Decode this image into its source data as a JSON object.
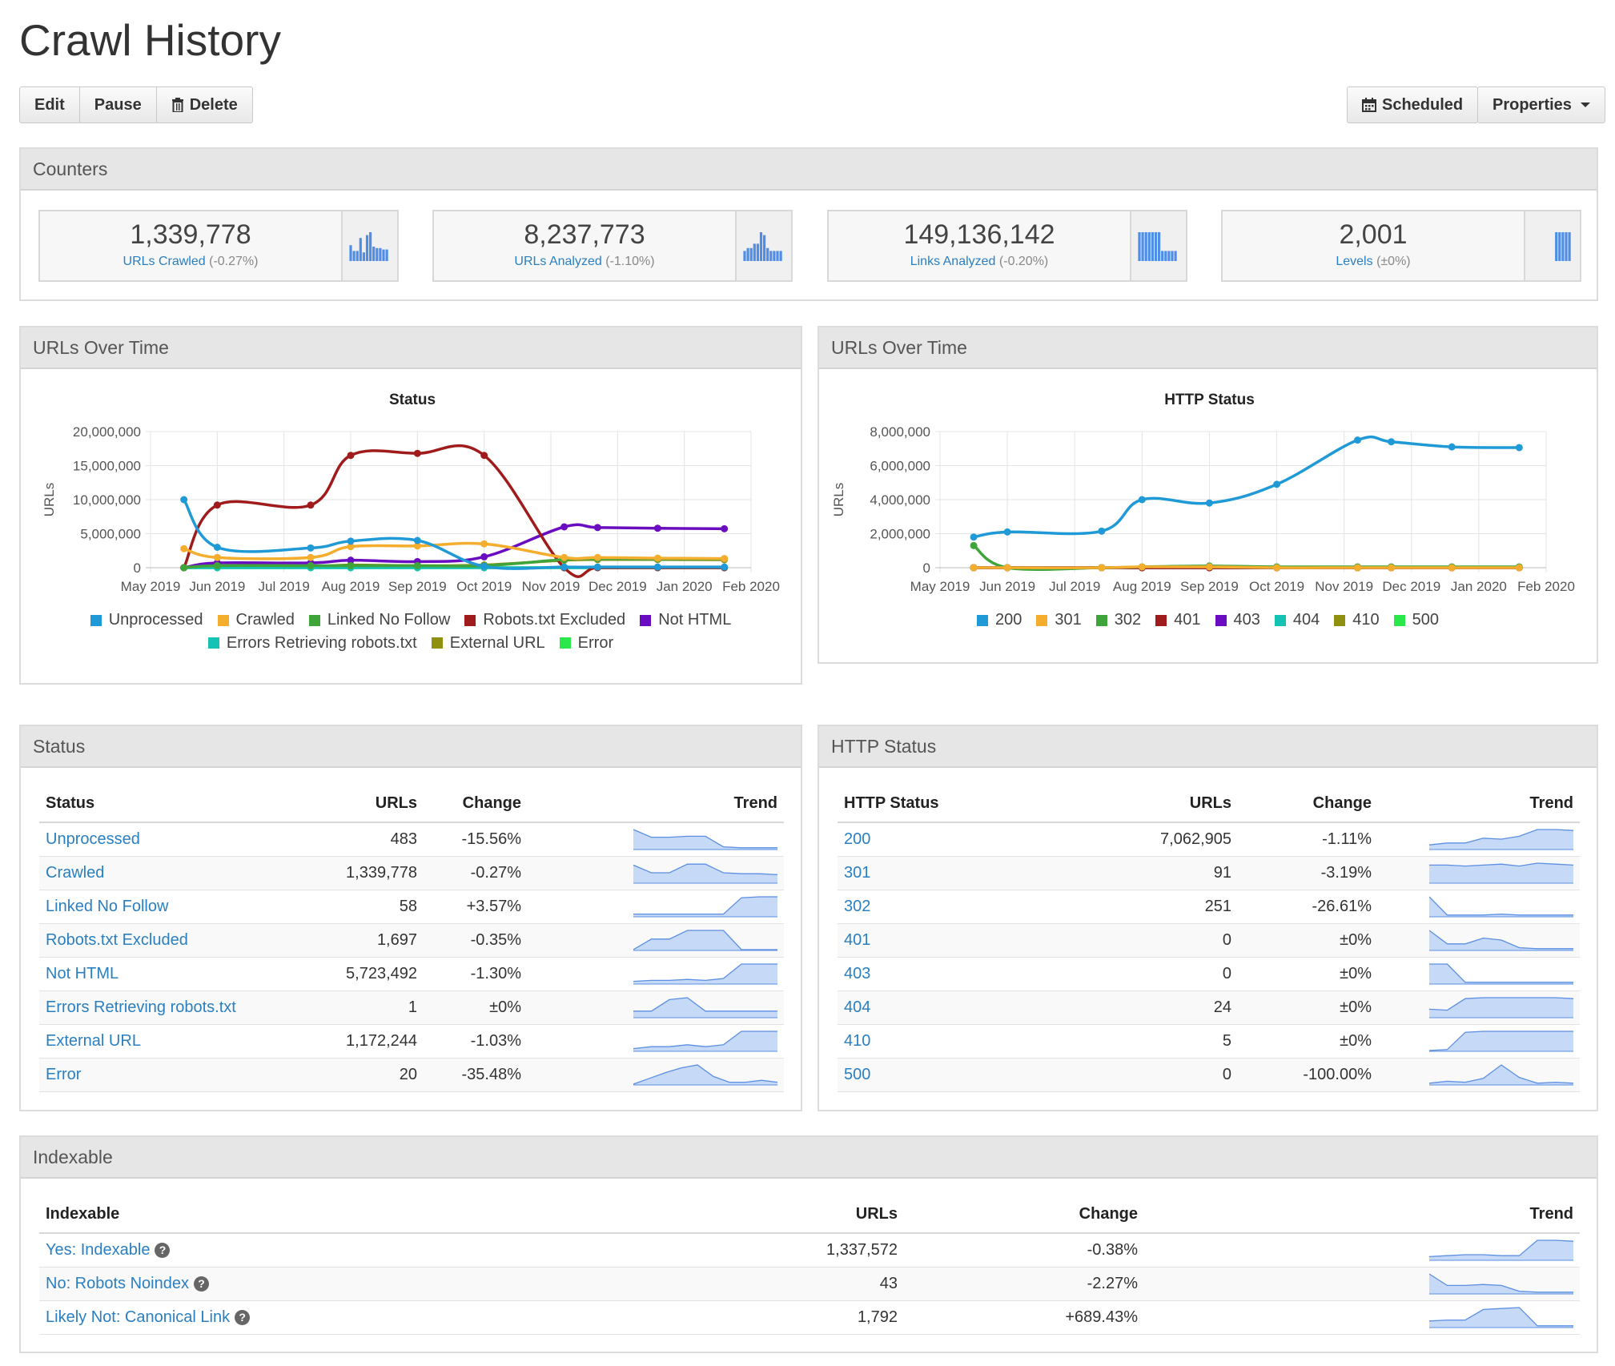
{
  "page": {
    "title": "Crawl History"
  },
  "toolbar": {
    "edit": "Edit",
    "pause": "Pause",
    "delete": "Delete",
    "delete_icon": "trash-icon",
    "scheduled": "Scheduled",
    "scheduled_icon": "calendar-icon",
    "properties": "Properties"
  },
  "counters": {
    "title": "Counters",
    "items": [
      {
        "value": "1,339,778",
        "label": "URLs Crawled",
        "change": "(-0.27%)",
        "bars": [
          0.55,
          0.35,
          0.35,
          0.8,
          0.3,
          0.9,
          1,
          0.5,
          0.45,
          0.45,
          0.4,
          0.4
        ]
      },
      {
        "value": "8,237,773",
        "label": "URLs Analyzed",
        "change": "(-1.10%)",
        "bars": [
          0.35,
          0.45,
          0.45,
          0.6,
          0.6,
          1,
          0.9,
          0.45,
          0.35,
          0.35,
          0.35,
          0.35
        ]
      },
      {
        "value": "149,136,142",
        "label": "Links Analyzed",
        "change": "(-0.20%)",
        "bars": [
          1,
          1,
          1,
          1,
          1,
          1,
          1,
          0.35,
          0.35,
          0.35,
          0.35,
          0.35
        ]
      },
      {
        "value": "2,001",
        "label": "Levels",
        "change": "(±0%)",
        "bars": [
          0,
          0,
          0,
          0,
          0,
          0,
          0,
          1,
          1,
          1,
          1,
          1
        ]
      }
    ]
  },
  "chart_status": {
    "panel_title": "URLs Over Time",
    "accent": "#2a7fc0"
  },
  "chart_http": {
    "panel_title": "URLs Over Time"
  },
  "chart_data": [
    {
      "type": "line",
      "title": "Status",
      "ylabel": "URLs",
      "ylim": [
        0,
        20000000
      ],
      "yticks": [
        "0",
        "5,000,000",
        "10,000,000",
        "15,000,000",
        "20,000,000"
      ],
      "xticks": [
        "May 2019",
        "Jun 2019",
        "Jul 2019",
        "Aug 2019",
        "Sep 2019",
        "Oct 2019",
        "Nov 2019",
        "Dec 2019",
        "Jan 2020",
        "Feb 2020"
      ],
      "legend_position": "bottom",
      "x": [
        0.5,
        1.0,
        2.4,
        3.0,
        4.0,
        5.0,
        6.2,
        6.7,
        7.6,
        8.6
      ],
      "series": [
        {
          "name": "Unprocessed",
          "color": "#1f9ad6",
          "values": [
            10000000,
            3000000,
            2900000,
            3900000,
            4000000,
            200000,
            100000,
            100000,
            100000,
            100000
          ]
        },
        {
          "name": "Crawled",
          "color": "#f5ad2e",
          "values": [
            2800000,
            1500000,
            1500000,
            3100000,
            3200000,
            3500000,
            1500000,
            1500000,
            1400000,
            1340000
          ]
        },
        {
          "name": "Linked No Follow",
          "color": "#3fa53a",
          "values": [
            0,
            300000,
            300000,
            300000,
            300000,
            300000,
            1200000,
            1300000,
            1300000,
            1300000
          ]
        },
        {
          "name": "Robots.txt Excluded",
          "color": "#a01c1c",
          "values": [
            0,
            9200000,
            9200000,
            16500000,
            16800000,
            16500000,
            0,
            0,
            0,
            0
          ]
        },
        {
          "name": "Not HTML",
          "color": "#6a0dc0",
          "values": [
            0,
            700000,
            700000,
            1100000,
            900000,
            1600000,
            6000000,
            5900000,
            5800000,
            5720000
          ]
        },
        {
          "name": "Errors Retrieving robots.txt",
          "color": "#16c2b4",
          "values": [
            0,
            0,
            0,
            0,
            0,
            0,
            0,
            0,
            0,
            0
          ]
        },
        {
          "name": "External URL",
          "color": "#8f8f10",
          "values": [
            0,
            200000,
            200000,
            400000,
            300000,
            400000,
            1100000,
            1200000,
            1200000,
            1170000
          ]
        },
        {
          "name": "Error",
          "color": "#2ae84a",
          "values": [
            0,
            0,
            0,
            0,
            0,
            0,
            0,
            0,
            0,
            0
          ]
        }
      ]
    },
    {
      "type": "line",
      "title": "HTTP Status",
      "ylabel": "URLs",
      "ylim": [
        0,
        8000000
      ],
      "yticks": [
        "0",
        "2,000,000",
        "4,000,000",
        "6,000,000",
        "8,000,000"
      ],
      "xticks": [
        "May 2019",
        "Jun 2019",
        "Jul 2019",
        "Aug 2019",
        "Sep 2019",
        "Oct 2019",
        "Nov 2019",
        "Dec 2019",
        "Jan 2020",
        "Feb 2020"
      ],
      "legend_position": "bottom",
      "x": [
        0.5,
        1.0,
        2.4,
        3.0,
        4.0,
        5.0,
        6.2,
        6.7,
        7.6,
        8.6
      ],
      "series": [
        {
          "name": "200",
          "color": "#1f9ad6",
          "values": [
            1800000,
            2100000,
            2150000,
            4000000,
            3800000,
            4900000,
            7500000,
            7400000,
            7100000,
            7060000
          ]
        },
        {
          "name": "301",
          "color": "#f5ad2e",
          "values": [
            0,
            0,
            0,
            50000,
            50000,
            0,
            0,
            0,
            0,
            0
          ]
        },
        {
          "name": "302",
          "color": "#3fa53a",
          "values": [
            1300000,
            0,
            0,
            50000,
            100000,
            50000,
            50000,
            50000,
            50000,
            50000
          ]
        },
        {
          "name": "401",
          "color": "#a01c1c",
          "values": [
            0,
            0,
            0,
            0,
            0,
            0,
            0,
            0,
            0,
            0
          ]
        },
        {
          "name": "403",
          "color": "#6a0dc0",
          "values": [
            0,
            0,
            0,
            0,
            0,
            0,
            0,
            0,
            0,
            0
          ]
        },
        {
          "name": "404",
          "color": "#16c2b4",
          "values": [
            0,
            0,
            0,
            0,
            0,
            0,
            0,
            0,
            0,
            0
          ]
        },
        {
          "name": "410",
          "color": "#8f8f10",
          "values": [
            0,
            0,
            0,
            0,
            0,
            0,
            0,
            0,
            0,
            0
          ]
        },
        {
          "name": "500",
          "color": "#2ae84a",
          "values": [
            0,
            0,
            0,
            0,
            0,
            0,
            0,
            0,
            0,
            0
          ]
        }
      ]
    }
  ],
  "status_table": {
    "panel_title": "Status",
    "headers": [
      "Status",
      "URLs",
      "Change",
      "Trend"
    ],
    "rows": [
      {
        "name": "Unprocessed",
        "urls": "483",
        "change": "-15.56%",
        "trend": [
          1,
          0.6,
          0.6,
          0.65,
          0.65,
          0.1,
          0.05,
          0.05,
          0.05
        ]
      },
      {
        "name": "Crawled",
        "urls": "1,339,778",
        "change": "-0.27%",
        "trend": [
          0.9,
          0.5,
          0.5,
          0.95,
          0.95,
          0.5,
          0.45,
          0.45,
          0.4
        ]
      },
      {
        "name": "Linked No Follow",
        "urls": "58",
        "change": "+3.57%",
        "trend": [
          0.1,
          0.1,
          0.1,
          0.1,
          0.1,
          0.1,
          0.95,
          1,
          1
        ]
      },
      {
        "name": "Robots.txt Excluded",
        "urls": "1,697",
        "change": "-0.35%",
        "trend": [
          0,
          0.55,
          0.55,
          1,
          1,
          1,
          0,
          0,
          0
        ]
      },
      {
        "name": "Not HTML",
        "urls": "5,723,492",
        "change": "-1.30%",
        "trend": [
          0.1,
          0.15,
          0.15,
          0.2,
          0.15,
          0.25,
          1,
          1,
          1
        ]
      },
      {
        "name": "Errors Retrieving robots.txt",
        "urls": "1",
        "change": "±0%",
        "trend": [
          0.3,
          0.3,
          0.9,
          1,
          0.3,
          0.3,
          0.3,
          0.3,
          0.3
        ]
      },
      {
        "name": "External URL",
        "urls": "1,172,244",
        "change": "-1.03%",
        "trend": [
          0.1,
          0.2,
          0.2,
          0.3,
          0.2,
          0.3,
          1,
          1,
          1
        ]
      },
      {
        "name": "Error",
        "urls": "20",
        "change": "-35.48%",
        "trend": [
          0,
          0.3,
          0.6,
          0.85,
          1,
          0.4,
          0.1,
          0.1,
          0.2,
          0.1
        ]
      }
    ]
  },
  "http_table": {
    "panel_title": "HTTP Status",
    "headers": [
      "HTTP Status",
      "URLs",
      "Change",
      "Trend"
    ],
    "rows": [
      {
        "name": "200",
        "urls": "7,062,905",
        "change": "-1.11%",
        "trend": [
          0.2,
          0.3,
          0.3,
          0.55,
          0.5,
          0.65,
          1,
          1,
          0.95
        ]
      },
      {
        "name": "301",
        "urls": "91",
        "change": "-3.19%",
        "trend": [
          0.9,
          0.9,
          0.85,
          0.9,
          0.95,
          0.85,
          1,
          0.95,
          0.9
        ]
      },
      {
        "name": "302",
        "urls": "251",
        "change": "-26.61%",
        "trend": [
          1,
          0.05,
          0.05,
          0.05,
          0.1,
          0.05,
          0.05,
          0.05,
          0.05
        ]
      },
      {
        "name": "401",
        "urls": "0",
        "change": "±0%",
        "trend": [
          1,
          0.3,
          0.3,
          0.6,
          0.5,
          0.1,
          0.05,
          0.05,
          0.05
        ]
      },
      {
        "name": "403",
        "urls": "0",
        "change": "±0%",
        "trend": [
          1,
          1,
          0.05,
          0.05,
          0.05,
          0.05,
          0.05,
          0.05,
          0.05
        ]
      },
      {
        "name": "404",
        "urls": "24",
        "change": "±0%",
        "trend": [
          0.4,
          0.35,
          0.95,
          1,
          1,
          1,
          1,
          1,
          0.95
        ]
      },
      {
        "name": "410",
        "urls": "5",
        "change": "±0%",
        "trend": [
          0,
          0.05,
          0.95,
          1,
          1,
          1,
          1,
          1,
          1
        ]
      },
      {
        "name": "500",
        "urls": "0",
        "change": "-100.00%",
        "trend": [
          0.05,
          0.15,
          0.1,
          0.3,
          1,
          0.35,
          0.05,
          0.1,
          0.05
        ]
      }
    ]
  },
  "indexable_table": {
    "panel_title": "Indexable",
    "headers": [
      "Indexable",
      "URLs",
      "Change",
      "Trend"
    ],
    "rows": [
      {
        "name": "Yes: Indexable",
        "urls": "1,337,572",
        "change": "-0.38%",
        "trend": [
          0.15,
          0.2,
          0.25,
          0.25,
          0.2,
          0.2,
          1,
          1,
          0.95
        ]
      },
      {
        "name": "No: Robots Noindex",
        "urls": "43",
        "change": "-2.27%",
        "trend": [
          1,
          0.4,
          0.4,
          0.45,
          0.4,
          0.1,
          0.05,
          0.05,
          0.05
        ]
      },
      {
        "name": "Likely Not: Canonical Link",
        "urls": "1,792",
        "change": "+689.43%",
        "trend": [
          0.3,
          0.35,
          0.35,
          0.9,
          0.95,
          1,
          0.05,
          0.05,
          0.05
        ]
      }
    ]
  }
}
